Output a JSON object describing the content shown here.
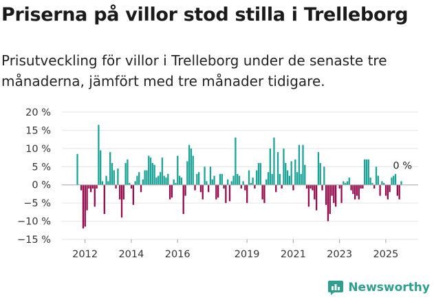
{
  "header": {
    "title": "Priserna på villor stod stilla i Trelleborg",
    "subtitle": "Prisutveckling för villor i Trelleborg under de senaste tre månaderna, jämfört med tre månader tidigare."
  },
  "brand": {
    "name": "Newsworthy",
    "color": "#2e9e8e"
  },
  "chart_data": {
    "type": "bar",
    "title": "Priserna på villor stod stilla i Trelleborg",
    "xlabel": "",
    "ylabel": "",
    "y_ticks": [
      20,
      15,
      10,
      5,
      0,
      -5,
      -10,
      -15
    ],
    "y_tick_labels": [
      "20 %",
      "15 %",
      "10 %",
      "5 %",
      "0 %",
      "−5 %",
      "−10 %",
      "−15 %"
    ],
    "ylim": [
      -15,
      20
    ],
    "x_start_year": 2011.67,
    "x_ticks": [
      2012,
      2014,
      2016,
      2019,
      2021,
      2023,
      2025
    ],
    "x_tick_labels": [
      "2012",
      "2014",
      "2016",
      "2019",
      "2021",
      "2023",
      "2025"
    ],
    "xlim": [
      2011.0,
      2026.4
    ],
    "colors": {
      "positive": "#1aa396",
      "negative": "#940a4c"
    },
    "annotation": {
      "label": "0 %",
      "value": 0
    },
    "values": [
      8.5,
      0,
      -1.5,
      -12,
      -11.5,
      -7,
      -1,
      -2,
      -1,
      -6,
      -1,
      16.5,
      9.5,
      1,
      -8,
      2.5,
      1,
      9,
      6,
      4,
      -1,
      4.5,
      -4,
      -9,
      -4,
      6,
      7,
      0.5,
      -1,
      -5.5,
      1,
      2.5,
      3.5,
      -2,
      1.5,
      4,
      4,
      8,
      7.5,
      6,
      5.5,
      2,
      2.5,
      3.5,
      7.5,
      2.5,
      2,
      3,
      -4,
      -3.5,
      1.5,
      0.5,
      8,
      2.5,
      2,
      -8,
      -3,
      6.5,
      11,
      10,
      8,
      -1.5,
      3,
      3.5,
      -2,
      -4,
      5,
      1,
      -2,
      5,
      1.5,
      2.5,
      -4,
      -3.5,
      3,
      3,
      -1,
      -5,
      1.5,
      -4.5,
      1,
      2.5,
      13,
      3,
      2.5,
      -1,
      1,
      -1.5,
      -5,
      4,
      0.5,
      2,
      -1,
      4,
      6,
      6,
      -4,
      -5,
      1.5,
      3.5,
      10,
      3,
      13,
      -2,
      9,
      3,
      -1,
      10,
      6,
      4,
      2.5,
      6.5,
      -1.5,
      7,
      3.5,
      11,
      3,
      11,
      5.5,
      -1,
      -6,
      -1,
      -1.5,
      -4,
      -7,
      9,
      6,
      -1.5,
      5,
      -5.5,
      -10,
      -8,
      -3,
      -5,
      -6,
      0,
      -1,
      -5,
      1,
      0.5,
      1,
      2,
      -1.5,
      -2.5,
      -4,
      -3,
      -4,
      -1,
      -1,
      7,
      7,
      7,
      2,
      0.5,
      -1,
      5,
      2.5,
      -3,
      1,
      0.5,
      -3,
      -4,
      -2,
      2,
      2.5,
      3,
      -3,
      -4,
      1
    ]
  }
}
